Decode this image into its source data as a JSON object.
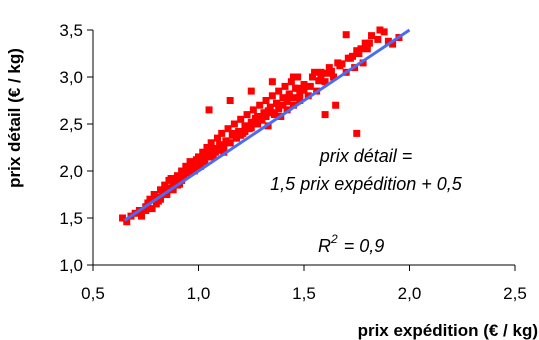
{
  "chart_data": {
    "type": "scatter",
    "xlabel": "prix expédition (€ / kg)",
    "ylabel": "prix détail (€ / kg)",
    "xlim": [
      0.5,
      2.5
    ],
    "ylim": [
      1.0,
      3.5
    ],
    "xticks": [
      "0,5",
      "1,0",
      "1,5",
      "2,0",
      "2,5"
    ],
    "yticks": [
      "1,0",
      "1,5",
      "2,0",
      "2,5",
      "3,0",
      "3,5"
    ],
    "grid": false,
    "legend": "none",
    "colors": {
      "points": "#ff0000",
      "trendline": "#4a6cf0"
    },
    "annotations": {
      "equation_line1": "prix détail =",
      "equation_line2": "1,5 prix expédition + 0,5",
      "r2_label": "R",
      "r2_exp": "2",
      "r2_value": "= 0,9"
    },
    "trendline": {
      "slope": 1.5,
      "intercept": 0.5,
      "x_range": [
        0.65,
        2.0
      ]
    },
    "series": [
      {
        "x": [
          0.64,
          0.66,
          0.68,
          0.7,
          0.72,
          0.73,
          0.75,
          0.76,
          0.77,
          0.78,
          0.79,
          0.8,
          0.81,
          0.82,
          0.83,
          0.84,
          0.85,
          0.86,
          0.87,
          0.88,
          0.89,
          0.9,
          0.91,
          0.92,
          0.93,
          0.94,
          0.95,
          0.96,
          0.97,
          0.98,
          0.99,
          1.0,
          1.01,
          1.02,
          1.03,
          1.04,
          1.05,
          1.06,
          1.07,
          1.08,
          1.09,
          1.1,
          1.11,
          1.12,
          1.13,
          1.14,
          1.15,
          1.16,
          1.17,
          1.18,
          1.19,
          1.2,
          1.21,
          1.22,
          1.23,
          1.24,
          1.25,
          1.26,
          1.27,
          1.28,
          1.29,
          1.3,
          1.31,
          1.32,
          1.33,
          1.34,
          1.35,
          1.36,
          1.37,
          1.38,
          1.39,
          1.4,
          1.41,
          1.42,
          1.43,
          1.44,
          1.45,
          1.46,
          1.47,
          1.48,
          1.5,
          1.52,
          1.54,
          1.56,
          1.58,
          1.6,
          1.62,
          1.64,
          1.66,
          1.7,
          1.72,
          1.74,
          1.76,
          1.78,
          1.8,
          1.85,
          1.9,
          1.95,
          0.8,
          0.85,
          0.9,
          0.95,
          1.0,
          1.05,
          1.1,
          1.15,
          1.2,
          1.25,
          1.3,
          1.35,
          1.4,
          1.45,
          1.5,
          0.75,
          0.82,
          0.88,
          0.92,
          0.98,
          1.02,
          1.08,
          1.12,
          1.18,
          1.22,
          1.28,
          1.32,
          1.38,
          1.42,
          1.48,
          1.53,
          1.58,
          1.63,
          1.68,
          1.73,
          1.77,
          1.81,
          1.88,
          1.92,
          1.05,
          1.15,
          1.25,
          1.35,
          1.45,
          1.55,
          1.65,
          0.87,
          0.93,
          0.97,
          1.03,
          1.07,
          1.13,
          1.17,
          1.23,
          1.27,
          1.33,
          1.37,
          1.43,
          1.47,
          1.57,
          1.61,
          1.67,
          1.71,
          1.75,
          1.79,
          1.82,
          1.86,
          1.6,
          1.75,
          1.7
        ],
        "y": [
          1.5,
          1.46,
          1.52,
          1.55,
          1.58,
          1.52,
          1.62,
          1.66,
          1.7,
          1.6,
          1.75,
          1.72,
          1.68,
          1.8,
          1.76,
          1.85,
          1.78,
          1.9,
          1.82,
          1.88,
          1.92,
          1.95,
          1.86,
          2.0,
          1.94,
          2.05,
          1.98,
          2.1,
          2.02,
          2.08,
          2.12,
          2.15,
          2.05,
          2.2,
          2.1,
          2.25,
          2.18,
          2.3,
          2.15,
          2.22,
          2.35,
          2.28,
          2.4,
          2.2,
          2.32,
          2.45,
          2.3,
          2.38,
          2.5,
          2.35,
          2.42,
          2.55,
          2.4,
          2.48,
          2.6,
          2.45,
          2.52,
          2.65,
          2.5,
          2.58,
          2.7,
          2.55,
          2.62,
          2.75,
          2.48,
          2.68,
          2.8,
          2.6,
          2.72,
          2.85,
          2.58,
          2.78,
          2.9,
          2.65,
          2.82,
          2.95,
          2.7,
          2.88,
          3.0,
          2.75,
          2.92,
          2.8,
          3.0,
          2.85,
          3.05,
          2.95,
          3.1,
          3.0,
          3.15,
          3.05,
          3.2,
          3.1,
          3.25,
          3.15,
          3.3,
          3.4,
          3.38,
          3.42,
          1.65,
          1.75,
          1.85,
          1.98,
          2.05,
          2.15,
          2.22,
          2.3,
          2.38,
          2.46,
          2.54,
          2.62,
          2.7,
          2.78,
          2.86,
          1.58,
          1.7,
          1.8,
          1.9,
          2.0,
          2.1,
          2.2,
          2.25,
          2.35,
          2.42,
          2.5,
          2.58,
          2.66,
          2.74,
          2.82,
          2.9,
          2.98,
          3.06,
          3.14,
          3.22,
          3.3,
          3.36,
          3.48,
          3.35,
          2.65,
          2.75,
          2.85,
          2.95,
          3.0,
          3.05,
          2.7,
          1.92,
          2.0,
          2.08,
          2.16,
          2.24,
          2.32,
          2.4,
          2.48,
          2.56,
          2.64,
          2.72,
          2.8,
          2.88,
          2.96,
          3.04,
          3.12,
          3.2,
          3.28,
          3.36,
          3.44,
          3.5,
          2.6,
          2.4,
          3.45
        ]
      }
    ]
  }
}
